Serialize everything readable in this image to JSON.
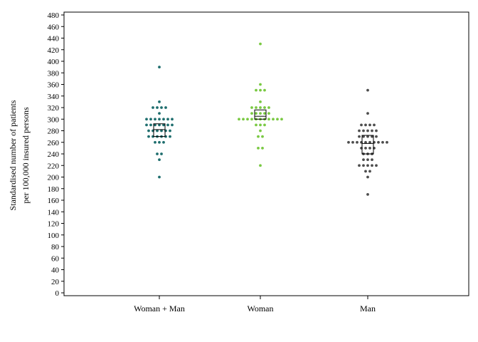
{
  "chart_data": {
    "type": "scatter",
    "ylabel_line1": "Standardised number of patients",
    "ylabel_line2": "per 100,000 insured persons",
    "ylim": [
      0,
      480
    ],
    "yticks": [
      0,
      20,
      40,
      60,
      80,
      100,
      120,
      140,
      160,
      180,
      200,
      220,
      240,
      260,
      280,
      300,
      320,
      340,
      360,
      380,
      400,
      420,
      440,
      460,
      480
    ],
    "grid": false,
    "categories": [
      "Woman + Man",
      "Woman",
      "Man"
    ],
    "series": [
      {
        "color": "#1f6e6e",
        "q1": 270,
        "median": 282,
        "q3": 292,
        "rows": [
          {
            "y": 390,
            "n": 1
          },
          {
            "y": 330,
            "n": 1
          },
          {
            "y": 320,
            "n": 4
          },
          {
            "y": 310,
            "n": 1
          },
          {
            "y": 300,
            "n": 7
          },
          {
            "y": 290,
            "n": 7
          },
          {
            "y": 280,
            "n": 6
          },
          {
            "y": 270,
            "n": 6
          },
          {
            "y": 260,
            "n": 3
          },
          {
            "y": 240,
            "n": 2
          },
          {
            "y": 230,
            "n": 1
          },
          {
            "y": 200,
            "n": 1
          }
        ]
      },
      {
        "color": "#7ac943",
        "q1": 300,
        "median": 305,
        "q3": 316,
        "rows": [
          {
            "y": 430,
            "n": 1
          },
          {
            "y": 360,
            "n": 1
          },
          {
            "y": 350,
            "n": 3
          },
          {
            "y": 330,
            "n": 1
          },
          {
            "y": 320,
            "n": 5
          },
          {
            "y": 310,
            "n": 5
          },
          {
            "y": 300,
            "n": 11
          },
          {
            "y": 290,
            "n": 3
          },
          {
            "y": 280,
            "n": 1
          },
          {
            "y": 270,
            "n": 2
          },
          {
            "y": 250,
            "n": 2
          },
          {
            "y": 220,
            "n": 1
          }
        ]
      },
      {
        "color": "#4d4d4d",
        "q1": 240,
        "median": 258,
        "q3": 272,
        "rows": [
          {
            "y": 350,
            "n": 1
          },
          {
            "y": 310,
            "n": 1
          },
          {
            "y": 290,
            "n": 4
          },
          {
            "y": 280,
            "n": 5
          },
          {
            "y": 270,
            "n": 5
          },
          {
            "y": 260,
            "n": 10
          },
          {
            "y": 250,
            "n": 4
          },
          {
            "y": 240,
            "n": 3
          },
          {
            "y": 230,
            "n": 3
          },
          {
            "y": 220,
            "n": 5
          },
          {
            "y": 210,
            "n": 2
          },
          {
            "y": 200,
            "n": 1
          },
          {
            "y": 170,
            "n": 1
          }
        ]
      }
    ]
  }
}
